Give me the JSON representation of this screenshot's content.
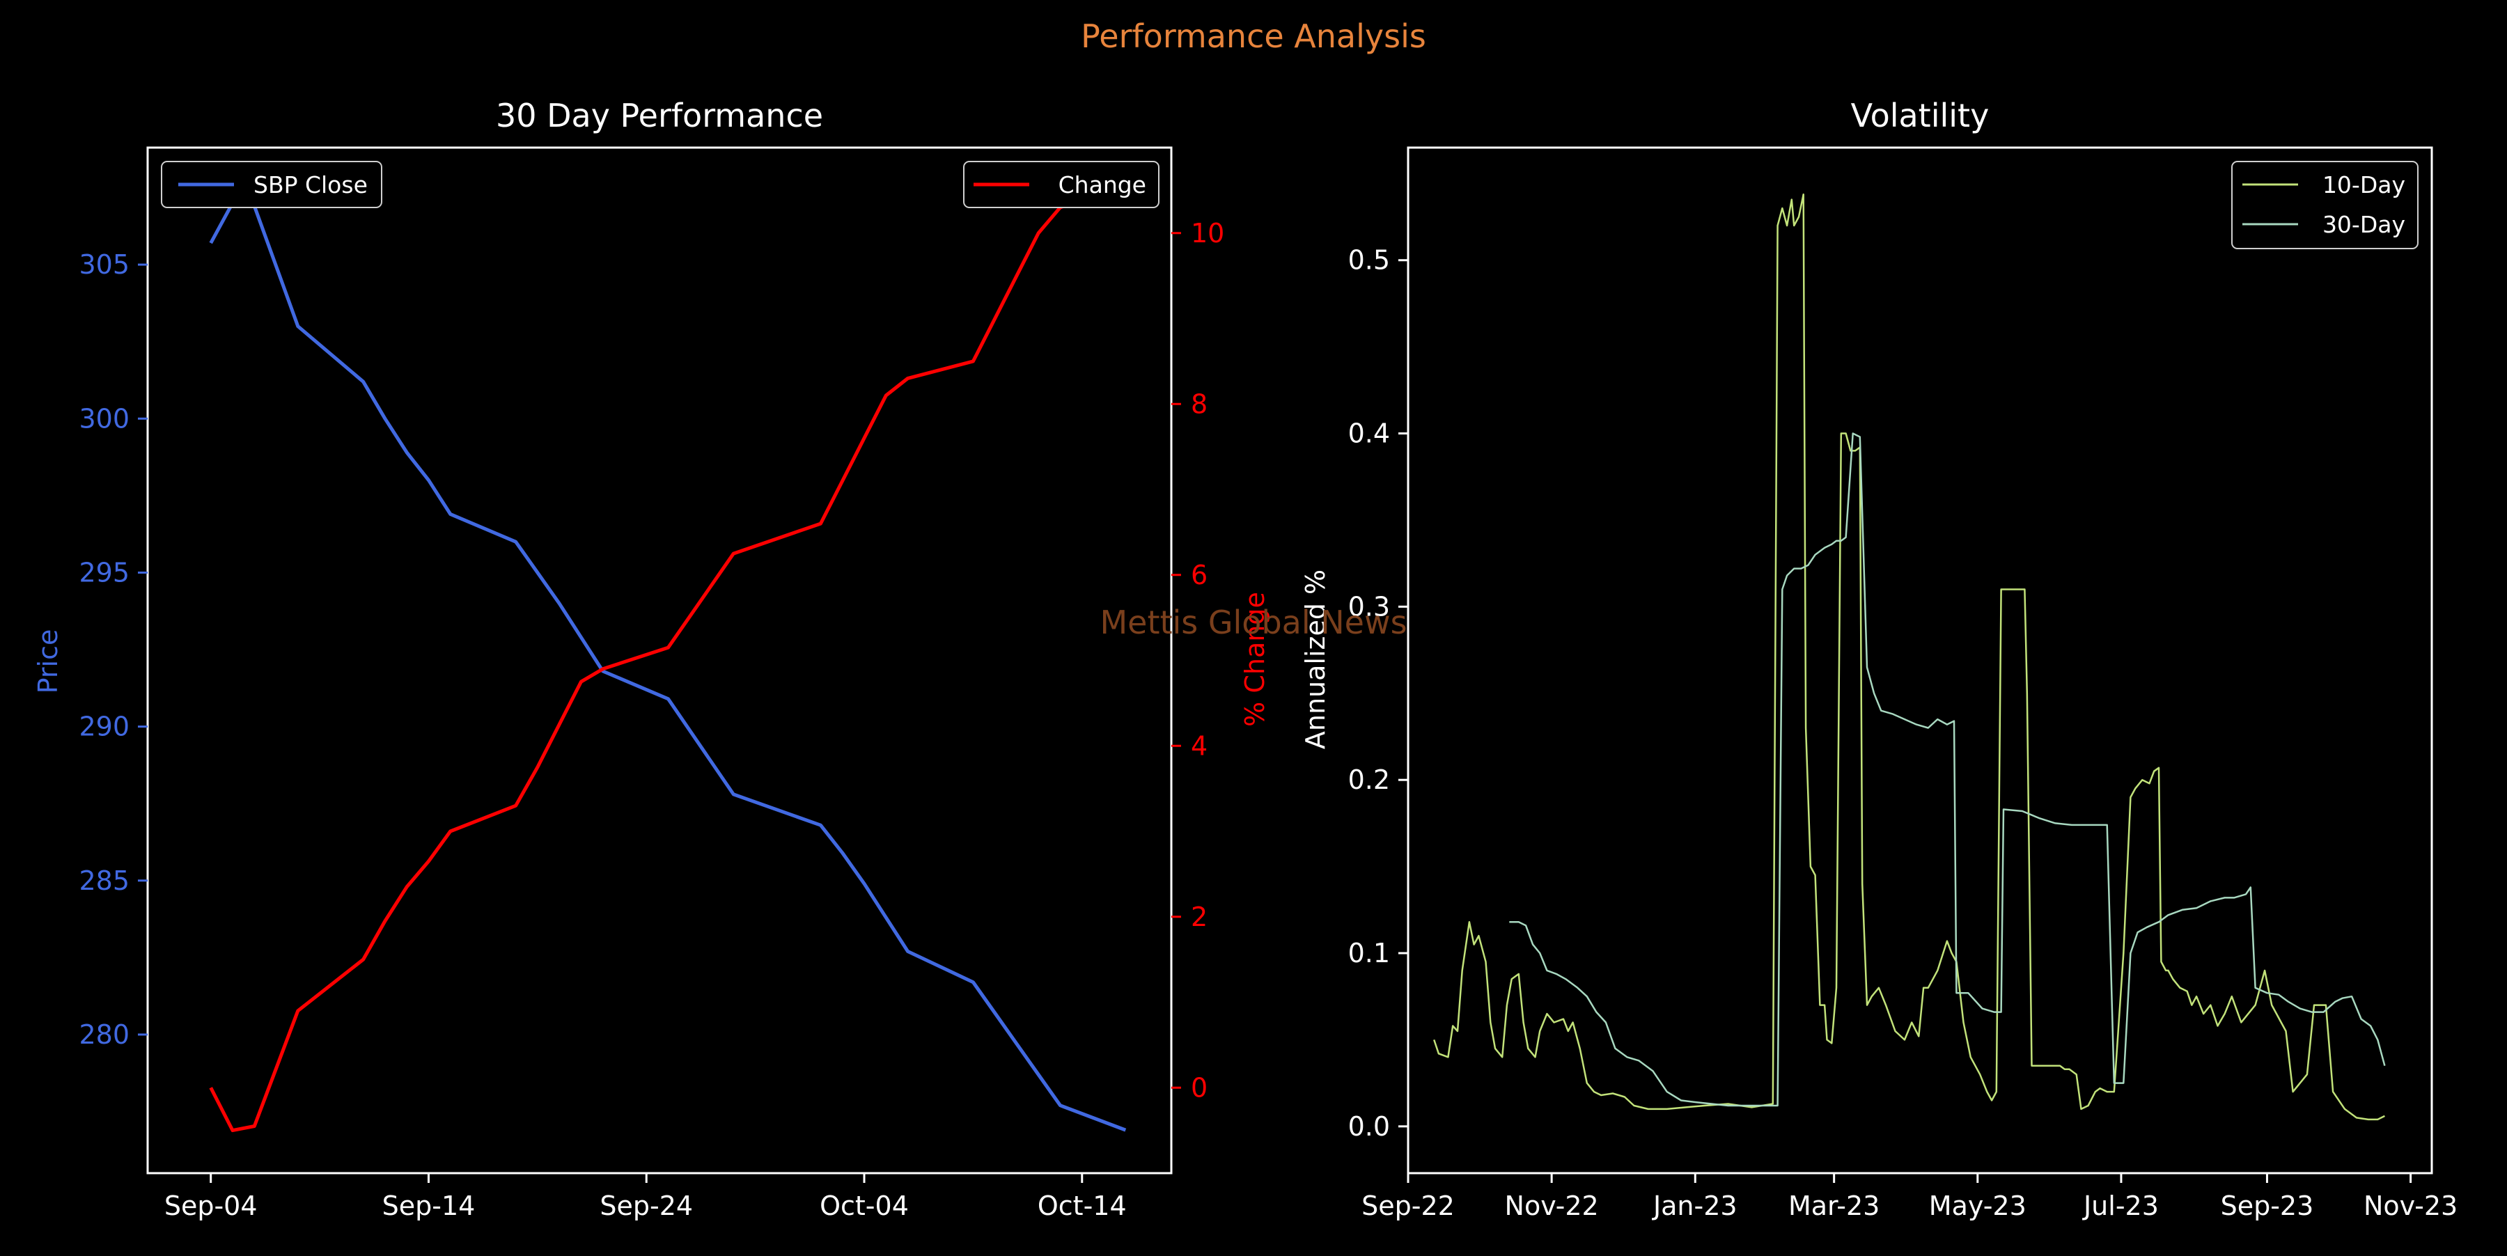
{
  "suptitle": "Performance Analysis",
  "watermark": "Mettis Global News",
  "colors": {
    "background": "#000000",
    "suptitle": "#e8843c",
    "watermark": "#7a3f1c",
    "price": "#4169e1",
    "change": "#ff0000",
    "vol10": "#c2e27a",
    "vol30": "#a8d8c0",
    "text": "#ffffff"
  },
  "chart_data": [
    {
      "type": "line",
      "title": "30 Day Performance",
      "xlabel": "",
      "ylabel": "Price",
      "ylabel_right": "% Change",
      "x_ticks": [
        "Sep-04",
        "Sep-14",
        "Sep-24",
        "Oct-04",
        "Oct-14"
      ],
      "ylim": [
        275.5,
        308.8
      ],
      "ylim_right": [
        -1.0,
        11.0
      ],
      "y_ticks": [
        280,
        285,
        290,
        295,
        300,
        305
      ],
      "y_ticks_right": [
        0,
        2,
        4,
        6,
        8,
        10
      ],
      "legend_left_placement": "upper-left",
      "legend_right_placement": "upper-right",
      "grid": false,
      "series": [
        {
          "name": "SBP Close",
          "axis": "left",
          "x": [
            "2024-09-04",
            "2024-09-05",
            "2024-09-06",
            "2024-09-08",
            "2024-09-11",
            "2024-09-12",
            "2024-09-13",
            "2024-09-14",
            "2024-09-15",
            "2024-09-18",
            "2024-09-19",
            "2024-09-20",
            "2024-09-21",
            "2024-09-22",
            "2024-09-25",
            "2024-09-28",
            "2024-10-02",
            "2024-10-03",
            "2024-10-04",
            "2024-10-05",
            "2024-10-06",
            "2024-10-09",
            "2024-10-10",
            "2024-10-11",
            "2024-10-12",
            "2024-10-13",
            "2024-10-16"
          ],
          "values": [
            305.7,
            307.0,
            306.9,
            303.0,
            301.2,
            300.0,
            298.9,
            298.0,
            296.9,
            296.0,
            295.0,
            294.0,
            292.9,
            291.8,
            290.9,
            287.8,
            286.8,
            285.9,
            284.9,
            283.8,
            282.7,
            281.7,
            280.7,
            279.7,
            278.7,
            277.7,
            276.9
          ]
        },
        {
          "name": "Change",
          "axis": "right",
          "x": [
            "2024-09-04",
            "2024-09-05",
            "2024-09-06",
            "2024-09-08",
            "2024-09-11",
            "2024-09-12",
            "2024-09-13",
            "2024-09-14",
            "2024-09-15",
            "2024-09-18",
            "2024-09-19",
            "2024-09-20",
            "2024-09-21",
            "2024-09-22",
            "2024-09-25",
            "2024-09-28",
            "2024-10-02",
            "2024-10-03",
            "2024-10-04",
            "2024-10-05",
            "2024-10-06",
            "2024-10-09",
            "2024-10-10",
            "2024-10-11",
            "2024-10-12",
            "2024-10-13",
            "2024-10-16"
          ],
          "values": [
            0.0,
            -0.5,
            -0.45,
            0.9,
            1.5,
            1.95,
            2.35,
            2.65,
            3.0,
            3.3,
            3.75,
            4.25,
            4.75,
            4.9,
            5.15,
            6.25,
            6.6,
            7.1,
            7.6,
            8.1,
            8.3,
            8.5,
            9.0,
            9.5,
            10.0,
            10.3,
            10.55
          ]
        }
      ]
    },
    {
      "type": "line",
      "title": "Volatility",
      "xlabel": "",
      "ylabel": "Annualized %",
      "x_ticks": [
        "Sep-22",
        "Nov-22",
        "Jan-23",
        "Mar-23",
        "May-23",
        "Jul-23",
        "Sep-23",
        "Nov-23"
      ],
      "ylim": [
        -0.027,
        0.565
      ],
      "y_ticks": [
        0.0,
        0.1,
        0.2,
        0.3,
        0.4,
        0.5
      ],
      "legend_placement": "upper-right",
      "grid": false,
      "series": [
        {
          "name": "10-Day",
          "x": [
            "2022-09-12",
            "2022-09-14",
            "2022-09-18",
            "2022-09-20",
            "2022-09-22",
            "2022-09-24",
            "2022-09-27",
            "2022-09-29",
            "2022-10-01",
            "2022-10-04",
            "2022-10-06",
            "2022-10-08",
            "2022-10-11",
            "2022-10-13",
            "2022-10-15",
            "2022-10-18",
            "2022-10-20",
            "2022-10-22",
            "2022-10-25",
            "2022-10-27",
            "2022-10-30",
            "2022-11-02",
            "2022-11-06",
            "2022-11-08",
            "2022-11-10",
            "2022-11-13",
            "2022-11-16",
            "2022-11-19",
            "2022-11-22",
            "2022-11-27",
            "2022-12-02",
            "2022-12-06",
            "2022-12-12",
            "2022-12-20",
            "2022-12-28",
            "2023-01-05",
            "2023-01-15",
            "2023-01-25",
            "2023-02-03",
            "2023-02-05",
            "2023-02-07",
            "2023-02-09",
            "2023-02-11",
            "2023-02-12",
            "2023-02-14",
            "2023-02-16",
            "2023-02-17",
            "2023-02-19",
            "2023-02-21",
            "2023-02-23",
            "2023-02-25",
            "2023-02-26",
            "2023-02-28",
            "2023-03-02",
            "2023-03-04",
            "2023-03-06",
            "2023-03-08",
            "2023-03-10",
            "2023-03-12",
            "2023-03-13",
            "2023-03-15",
            "2023-03-17",
            "2023-03-20",
            "2023-03-23",
            "2023-03-27",
            "2023-03-31",
            "2023-04-03",
            "2023-04-06",
            "2023-04-08",
            "2023-04-10",
            "2023-04-14",
            "2023-04-18",
            "2023-04-20",
            "2023-04-22",
            "2023-04-25",
            "2023-04-28",
            "2023-05-02",
            "2023-05-05",
            "2023-05-07",
            "2023-05-09",
            "2023-05-11",
            "2023-05-12",
            "2023-05-19",
            "2023-05-21",
            "2023-05-22",
            "2023-05-24",
            "2023-06-01",
            "2023-06-05",
            "2023-06-07",
            "2023-06-09",
            "2023-06-12",
            "2023-06-14",
            "2023-06-17",
            "2023-06-20",
            "2023-06-22",
            "2023-06-25",
            "2023-06-28",
            "2023-07-02",
            "2023-07-05",
            "2023-07-07",
            "2023-07-10",
            "2023-07-13",
            "2023-07-15",
            "2023-07-17",
            "2023-07-18",
            "2023-07-20",
            "2023-07-21",
            "2023-07-23",
            "2023-07-26",
            "2023-07-29",
            "2023-07-31",
            "2023-08-02",
            "2023-08-05",
            "2023-08-08",
            "2023-08-11",
            "2023-08-14",
            "2023-08-17",
            "2023-08-21",
            "2023-08-24",
            "2023-08-27",
            "2023-08-31",
            "2023-09-03",
            "2023-09-05",
            "2023-09-07",
            "2023-09-09",
            "2023-09-12",
            "2023-09-15",
            "2023-09-18",
            "2023-09-21",
            "2023-09-23",
            "2023-09-26",
            "2023-09-29",
            "2023-10-04",
            "2023-10-09",
            "2023-10-14",
            "2023-10-18",
            "2023-10-21"
          ],
          "values": [
            0.05,
            0.042,
            0.04,
            0.058,
            0.055,
            0.09,
            0.118,
            0.105,
            0.11,
            0.095,
            0.06,
            0.045,
            0.04,
            0.07,
            0.085,
            0.088,
            0.06,
            0.045,
            0.04,
            0.055,
            0.065,
            0.06,
            0.062,
            0.055,
            0.06,
            0.045,
            0.025,
            0.02,
            0.018,
            0.019,
            0.017,
            0.012,
            0.01,
            0.01,
            0.011,
            0.012,
            0.013,
            0.011,
            0.013,
            0.52,
            0.53,
            0.52,
            0.535,
            0.52,
            0.525,
            0.538,
            0.23,
            0.15,
            0.145,
            0.07,
            0.07,
            0.05,
            0.048,
            0.08,
            0.4,
            0.4,
            0.39,
            0.39,
            0.392,
            0.14,
            0.07,
            0.075,
            0.08,
            0.07,
            0.055,
            0.05,
            0.06,
            0.052,
            0.08,
            0.08,
            0.09,
            0.107,
            0.1,
            0.095,
            0.06,
            0.04,
            0.03,
            0.02,
            0.015,
            0.02,
            0.31,
            0.31,
            0.31,
            0.31,
            0.25,
            0.035,
            0.035,
            0.035,
            0.033,
            0.033,
            0.03,
            0.01,
            0.012,
            0.02,
            0.022,
            0.02,
            0.02,
            0.1,
            0.19,
            0.195,
            0.2,
            0.198,
            0.205,
            0.207,
            0.095,
            0.09,
            0.09,
            0.085,
            0.08,
            0.078,
            0.07,
            0.075,
            0.065,
            0.07,
            0.058,
            0.065,
            0.075,
            0.06,
            0.065,
            0.07,
            0.09,
            0.07,
            0.065,
            0.06,
            0.055,
            0.02,
            0.025,
            0.03,
            0.07,
            0.07,
            0.07,
            0.02,
            0.01,
            0.005,
            0.004,
            0.004,
            0.006
          ]
        },
        {
          "name": "30-Day",
          "x": [
            "2022-10-14",
            "2022-10-18",
            "2022-10-21",
            "2022-10-24",
            "2022-10-27",
            "2022-10-30",
            "2022-11-03",
            "2022-11-07",
            "2022-11-12",
            "2022-11-16",
            "2022-11-20",
            "2022-11-24",
            "2022-11-28",
            "2022-12-03",
            "2022-12-08",
            "2022-12-14",
            "2022-12-20",
            "2022-12-26",
            "2023-01-01",
            "2023-01-08",
            "2023-01-15",
            "2023-01-22",
            "2023-01-30",
            "2023-02-05",
            "2023-02-07",
            "2023-02-09",
            "2023-02-12",
            "2023-02-15",
            "2023-02-18",
            "2023-02-21",
            "2023-02-25",
            "2023-02-28",
            "2023-03-02",
            "2023-03-04",
            "2023-03-06",
            "2023-03-09",
            "2023-03-12",
            "2023-03-15",
            "2023-03-18",
            "2023-03-21",
            "2023-03-26",
            "2023-03-31",
            "2023-04-05",
            "2023-04-10",
            "2023-04-14",
            "2023-04-18",
            "2023-04-21",
            "2023-04-22",
            "2023-04-27",
            "2023-05-03",
            "2023-05-08",
            "2023-05-11",
            "2023-05-12",
            "2023-05-20",
            "2023-05-27",
            "2023-06-03",
            "2023-06-10",
            "2023-06-17",
            "2023-06-23",
            "2023-06-25",
            "2023-06-28",
            "2023-07-02",
            "2023-07-05",
            "2023-07-08",
            "2023-07-12",
            "2023-07-17",
            "2023-07-21",
            "2023-07-27",
            "2023-08-02",
            "2023-08-08",
            "2023-08-14",
            "2023-08-18",
            "2023-08-23",
            "2023-08-25",
            "2023-08-27",
            "2023-09-01",
            "2023-09-06",
            "2023-09-10",
            "2023-09-15",
            "2023-09-20",
            "2023-09-25",
            "2023-09-30",
            "2023-10-03",
            "2023-10-07",
            "2023-10-11",
            "2023-10-15",
            "2023-10-18",
            "2023-10-21"
          ],
          "values": [
            0.118,
            0.118,
            0.116,
            0.105,
            0.1,
            0.09,
            0.088,
            0.085,
            0.08,
            0.075,
            0.066,
            0.06,
            0.045,
            0.04,
            0.038,
            0.032,
            0.02,
            0.015,
            0.014,
            0.013,
            0.012,
            0.012,
            0.012,
            0.012,
            0.31,
            0.318,
            0.322,
            0.322,
            0.324,
            0.33,
            0.334,
            0.336,
            0.338,
            0.338,
            0.34,
            0.4,
            0.398,
            0.265,
            0.25,
            0.24,
            0.238,
            0.235,
            0.232,
            0.23,
            0.235,
            0.232,
            0.234,
            0.077,
            0.077,
            0.068,
            0.066,
            0.066,
            0.183,
            0.182,
            0.178,
            0.175,
            0.174,
            0.174,
            0.174,
            0.174,
            0.025,
            0.025,
            0.1,
            0.112,
            0.115,
            0.118,
            0.122,
            0.125,
            0.126,
            0.13,
            0.132,
            0.132,
            0.134,
            0.138,
            0.08,
            0.077,
            0.076,
            0.072,
            0.068,
            0.066,
            0.066,
            0.072,
            0.074,
            0.075,
            0.062,
            0.058,
            0.05,
            0.035
          ]
        }
      ]
    }
  ]
}
